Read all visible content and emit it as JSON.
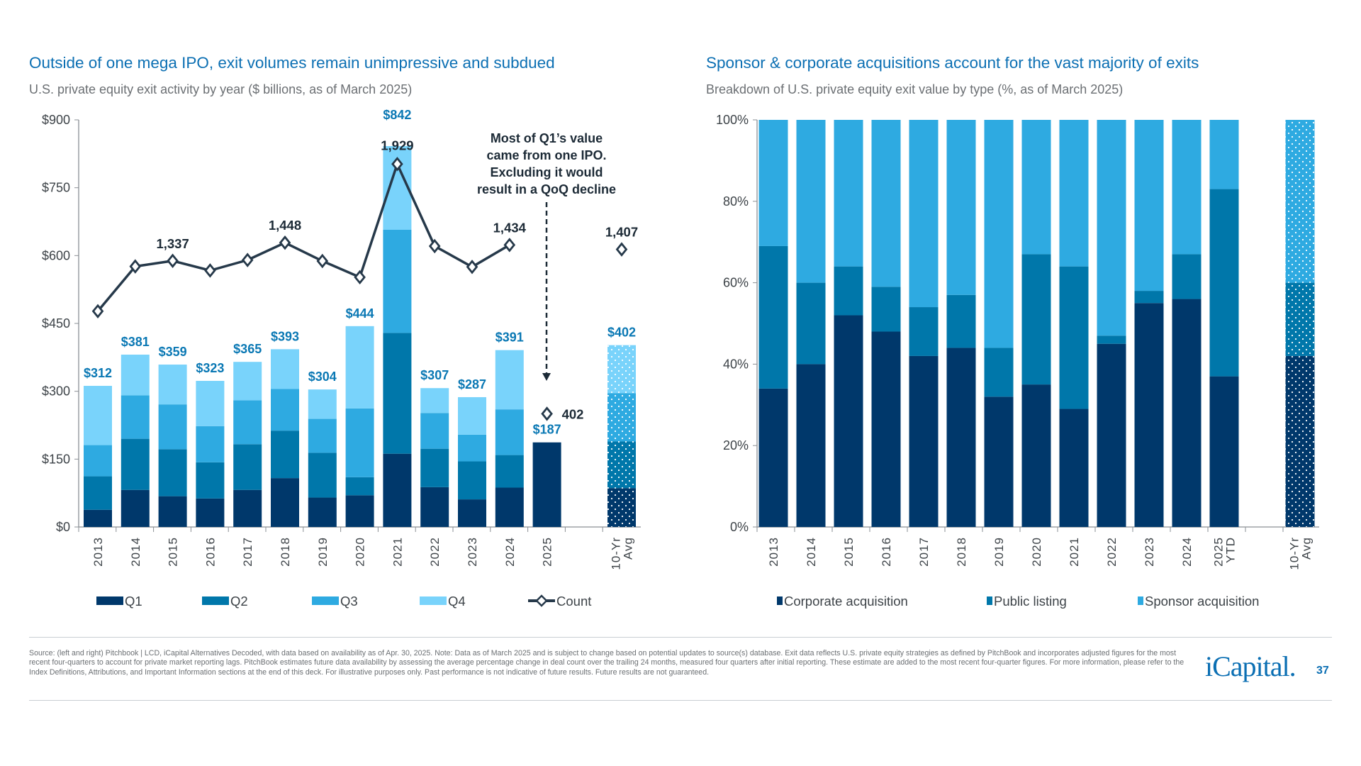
{
  "left": {
    "title": "Outside of one mega IPO, exit volumes remain unimpressive and subdued",
    "subtitle": "U.S. private equity exit activity by year ($ billions, as of March 2025)",
    "annotation": [
      "Most of Q1’s value",
      "came from one IPO.",
      "Excluding it would",
      "result in a QoQ decline"
    ]
  },
  "right": {
    "title": "Sponsor & corporate acquisitions account for the vast majority of exits",
    "subtitle": "Breakdown of U.S. private equity exit value by type (%, as of March 2025)"
  },
  "chart_data": [
    {
      "type": "bar",
      "stacked": true,
      "categories": [
        "2013",
        "2014",
        "2015",
        "2016",
        "2017",
        "2018",
        "2019",
        "2020",
        "2021",
        "2022",
        "2023",
        "2024",
        "2025",
        "10-Yr Avg"
      ],
      "yticks": [
        "$0",
        "$150",
        "$300",
        "$450",
        "$600",
        "$750",
        "$900"
      ],
      "ylim": [
        0,
        900
      ],
      "series": [
        {
          "name": "Q1",
          "color": "#00386b",
          "values": [
            38,
            82,
            68,
            63,
            82,
            108,
            65,
            70,
            162,
            88,
            61,
            87,
            187,
            86
          ]
        },
        {
          "name": "Q2",
          "color": "#0077aa",
          "values": [
            74,
            113,
            104,
            80,
            101,
            105,
            99,
            40,
            267,
            85,
            84,
            72,
            null,
            103
          ]
        },
        {
          "name": "Q3",
          "color": "#2eaae1",
          "values": [
            69,
            96,
            99,
            80,
            97,
            92,
            75,
            152,
            228,
            79,
            59,
            101,
            null,
            107
          ]
        },
        {
          "name": "Q4",
          "color": "#79d3fb",
          "values": [
            131,
            90,
            88,
            100,
            85,
            88,
            65,
            182,
            185,
            55,
            83,
            131,
            null,
            106
          ]
        }
      ],
      "total_labels": [
        "$312",
        "$381",
        "$359",
        "$323",
        "$365",
        "$393",
        "$304",
        "$444",
        "$842",
        "$307",
        "$287",
        "$391",
        "$187",
        "$402"
      ],
      "line_series": {
        "name": "Count",
        "color": "#26394a",
        "values": [
          1029,
          1303,
          1337,
          1278,
          1342,
          1448,
          1336,
          1237,
          1929,
          1427,
          1300,
          1434,
          402,
          1407
        ],
        "labels": [
          "",
          "",
          "1,337",
          "",
          "",
          "1,448",
          "",
          "",
          "1,929",
          "",
          "",
          "1,434",
          "402",
          "1,407"
        ],
        "connected_through": "2024"
      },
      "legend": [
        "Q1",
        "Q2",
        "Q3",
        "Q4",
        "Count"
      ],
      "legend_position": "bottom",
      "grid": false,
      "patterned_category": "10-Yr Avg"
    },
    {
      "type": "bar",
      "stacked": true,
      "categories": [
        "2013",
        "2014",
        "2015",
        "2016",
        "2017",
        "2018",
        "2019",
        "2020",
        "2021",
        "2022",
        "2023",
        "2024",
        "2025 YTD",
        "10-Yr Avg"
      ],
      "yticks": [
        "0%",
        "20%",
        "40%",
        "60%",
        "80%",
        "100%"
      ],
      "ylim": [
        0,
        100
      ],
      "series": [
        {
          "name": "Corporate acquisition",
          "color": "#00386b",
          "values": [
            34,
            40,
            52,
            48,
            42,
            44,
            32,
            35,
            29,
            45,
            55,
            56,
            37,
            42
          ]
        },
        {
          "name": "Public listing",
          "color": "#0077aa",
          "values": [
            35,
            20,
            12,
            11,
            12,
            13,
            12,
            32,
            35,
            2,
            3,
            11,
            46,
            18
          ]
        },
        {
          "name": "Sponsor acquisition",
          "color": "#2eaae1",
          "values": [
            31,
            40,
            36,
            41,
            46,
            43,
            56,
            33,
            36,
            53,
            42,
            33,
            17,
            40
          ]
        }
      ],
      "legend": [
        "Corporate acquisition",
        "Public listing",
        "Sponsor acquisition"
      ],
      "legend_position": "bottom",
      "grid": false,
      "patterned_category": "10-Yr Avg"
    }
  ],
  "footer": {
    "source": "Source: (left and right) Pitchbook | LCD, iCapital Alternatives Decoded, with data based on availability as of Apr. 30, 2025. Note: Data as of March 2025 and is subject to change based on potential updates to source(s) database. Exit data reflects U.S. private equity strategies as defined by PitchBook and incorporates adjusted figures for the most recent four-quarters to account for private market reporting lags. PitchBook estimates future data availability by assessing the average percentage change in deal count over the trailing 24 months, measured four quarters after initial reporting. These estimate are added to the most recent four-quarter figures. For more information, please refer to the Index Definitions, Attributions, and Important Information sections at the end of this deck. For illustrative purposes only. Past performance is not indicative of future results. Future results are not guaranteed.",
    "logo": "iCapital.",
    "page_number": "37"
  },
  "colors": {
    "title": "#0b6fb3",
    "label": "#0a78b4",
    "text": "#26394a"
  }
}
